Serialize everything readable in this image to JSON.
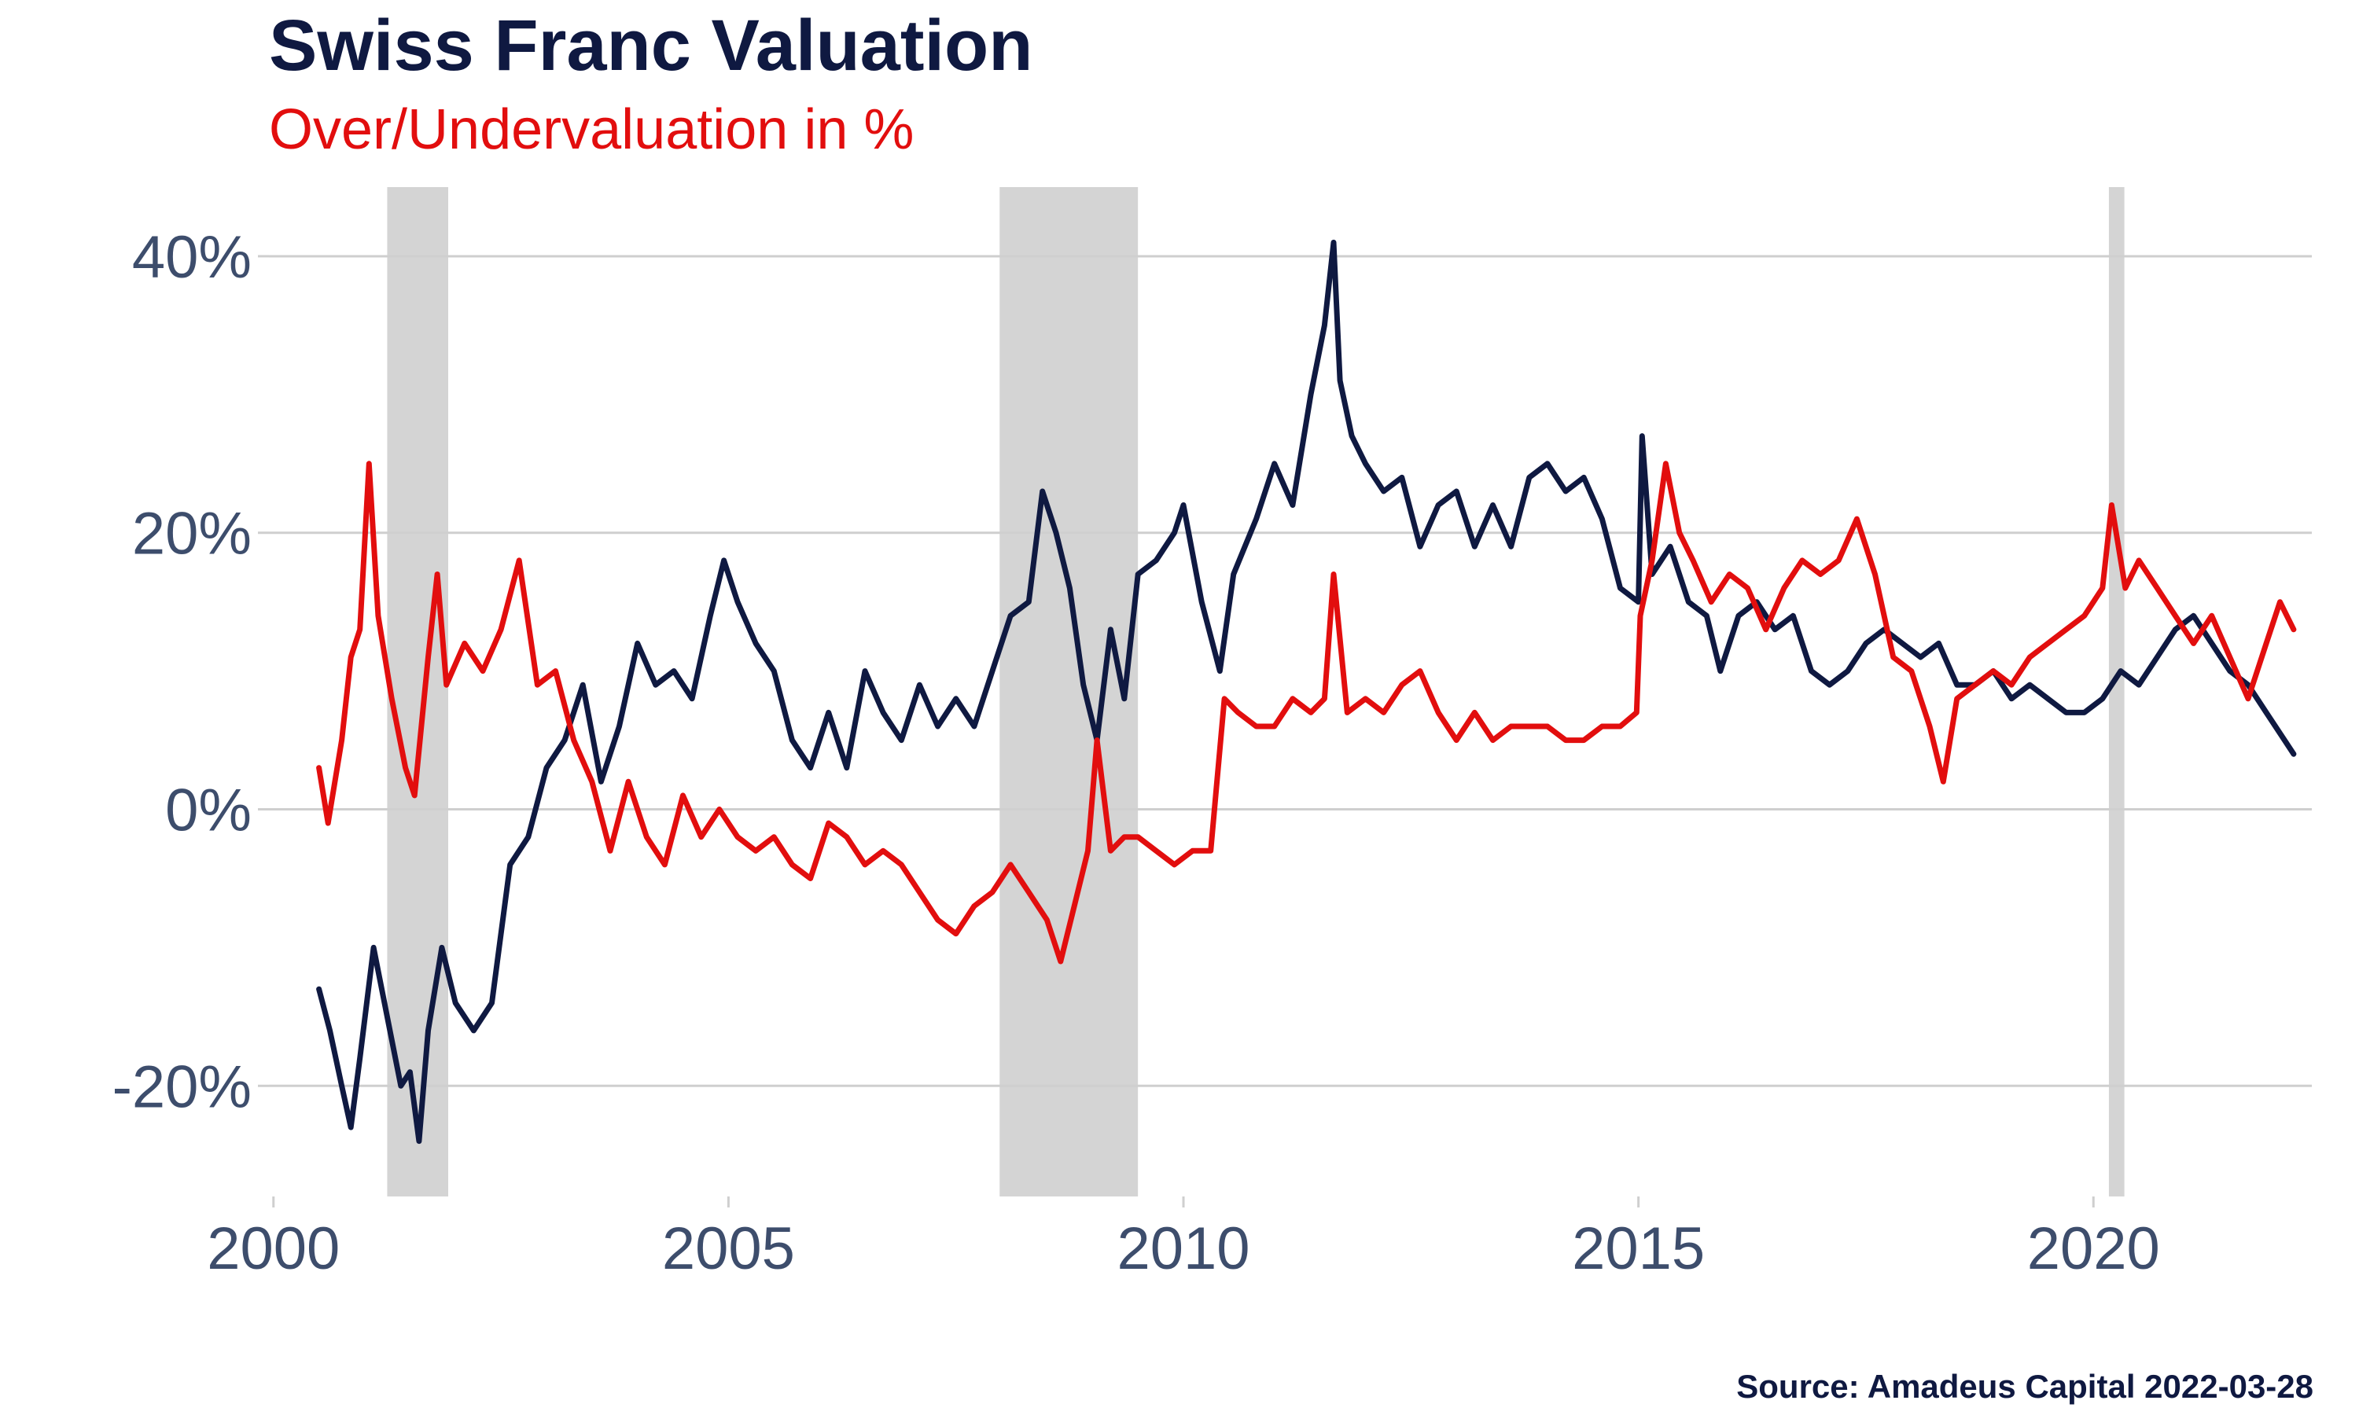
{
  "title": "Swiss Franc Valuation",
  "subtitle": "Over/Undervaluation in %",
  "source": "Source: Amadeus Capital 2022-03-28",
  "colors": {
    "series_dark": "#0f1941",
    "series_red": "#e20e0e",
    "recession_band": "#d4d4d4",
    "grid": "#cfcfcf",
    "tick_text": "#3d4d6c"
  },
  "chart_data": {
    "type": "line",
    "title": "Swiss Franc Valuation",
    "subtitle": "Over/Undervaluation in %",
    "xlim": [
      1999.95,
      2022.4
    ],
    "ylim": [
      -28,
      45
    ],
    "x_ticks": [
      2000,
      2005,
      2010,
      2015,
      2020
    ],
    "x_tick_labels": [
      "2000",
      "2005",
      "2010",
      "2015",
      "2020"
    ],
    "y_ticks": [
      -20,
      0,
      20,
      40
    ],
    "y_tick_labels": [
      "-20%",
      "0%",
      "20%",
      "40%"
    ],
    "grid": "horizontal",
    "shaded_periods": [
      [
        2001.25,
        2001.92
      ],
      [
        2007.98,
        2009.5
      ],
      [
        2020.17,
        2020.34
      ]
    ],
    "series": [
      {
        "color": "#0f1941",
        "points": [
          [
            2000.5,
            -13
          ],
          [
            2000.62,
            -16
          ],
          [
            2000.75,
            -20
          ],
          [
            2000.85,
            -23
          ],
          [
            2000.95,
            -18
          ],
          [
            2001.1,
            -10
          ],
          [
            2001.25,
            -15
          ],
          [
            2001.4,
            -20
          ],
          [
            2001.5,
            -19
          ],
          [
            2001.6,
            -24
          ],
          [
            2001.7,
            -16
          ],
          [
            2001.85,
            -10
          ],
          [
            2002.0,
            -14
          ],
          [
            2002.2,
            -16
          ],
          [
            2002.4,
            -14
          ],
          [
            2002.6,
            -4
          ],
          [
            2002.8,
            -2
          ],
          [
            2003.0,
            3
          ],
          [
            2003.2,
            5
          ],
          [
            2003.4,
            9
          ],
          [
            2003.6,
            2
          ],
          [
            2003.8,
            6
          ],
          [
            2004.0,
            12
          ],
          [
            2004.2,
            9
          ],
          [
            2004.4,
            10
          ],
          [
            2004.6,
            8
          ],
          [
            2004.8,
            14
          ],
          [
            2004.95,
            18
          ],
          [
            2005.1,
            15
          ],
          [
            2005.3,
            12
          ],
          [
            2005.5,
            10
          ],
          [
            2005.7,
            5
          ],
          [
            2005.9,
            3
          ],
          [
            2006.1,
            7
          ],
          [
            2006.3,
            3
          ],
          [
            2006.5,
            10
          ],
          [
            2006.7,
            7
          ],
          [
            2006.9,
            5
          ],
          [
            2007.1,
            9
          ],
          [
            2007.3,
            6
          ],
          [
            2007.5,
            8
          ],
          [
            2007.7,
            6
          ],
          [
            2007.9,
            10
          ],
          [
            2008.1,
            14
          ],
          [
            2008.3,
            15
          ],
          [
            2008.45,
            23
          ],
          [
            2008.6,
            20
          ],
          [
            2008.75,
            16
          ],
          [
            2008.9,
            9
          ],
          [
            2009.05,
            5
          ],
          [
            2009.2,
            13
          ],
          [
            2009.35,
            8
          ],
          [
            2009.5,
            17
          ],
          [
            2009.7,
            18
          ],
          [
            2009.9,
            20
          ],
          [
            2010.0,
            22
          ],
          [
            2010.2,
            15
          ],
          [
            2010.4,
            10
          ],
          [
            2010.55,
            17
          ],
          [
            2010.8,
            21
          ],
          [
            2011.0,
            25
          ],
          [
            2011.2,
            22
          ],
          [
            2011.4,
            30
          ],
          [
            2011.55,
            35
          ],
          [
            2011.65,
            41
          ],
          [
            2011.72,
            31
          ],
          [
            2011.85,
            27
          ],
          [
            2012.0,
            25
          ],
          [
            2012.2,
            23
          ],
          [
            2012.4,
            24
          ],
          [
            2012.6,
            19
          ],
          [
            2012.8,
            22
          ],
          [
            2013.0,
            23
          ],
          [
            2013.2,
            19
          ],
          [
            2013.4,
            22
          ],
          [
            2013.6,
            19
          ],
          [
            2013.8,
            24
          ],
          [
            2014.0,
            25
          ],
          [
            2014.2,
            23
          ],
          [
            2014.4,
            24
          ],
          [
            2014.6,
            21
          ],
          [
            2014.8,
            16
          ],
          [
            2015.0,
            15
          ],
          [
            2015.04,
            27
          ],
          [
            2015.15,
            17
          ],
          [
            2015.35,
            19
          ],
          [
            2015.55,
            15
          ],
          [
            2015.75,
            14
          ],
          [
            2015.9,
            10
          ],
          [
            2016.1,
            14
          ],
          [
            2016.3,
            15
          ],
          [
            2016.5,
            13
          ],
          [
            2016.7,
            14
          ],
          [
            2016.9,
            10
          ],
          [
            2017.1,
            9
          ],
          [
            2017.3,
            10
          ],
          [
            2017.5,
            12
          ],
          [
            2017.7,
            13
          ],
          [
            2017.9,
            12
          ],
          [
            2018.1,
            11
          ],
          [
            2018.3,
            12
          ],
          [
            2018.5,
            9
          ],
          [
            2018.7,
            9
          ],
          [
            2018.9,
            10
          ],
          [
            2019.1,
            8
          ],
          [
            2019.3,
            9
          ],
          [
            2019.5,
            8
          ],
          [
            2019.7,
            7
          ],
          [
            2019.9,
            7
          ],
          [
            2020.1,
            8
          ],
          [
            2020.3,
            10
          ],
          [
            2020.5,
            9
          ],
          [
            2020.7,
            11
          ],
          [
            2020.9,
            13
          ],
          [
            2021.1,
            14
          ],
          [
            2021.3,
            12
          ],
          [
            2021.5,
            10
          ],
          [
            2021.7,
            9
          ],
          [
            2021.9,
            7
          ],
          [
            2022.1,
            5
          ],
          [
            2022.2,
            4
          ]
        ]
      },
      {
        "color": "#e20e0e",
        "points": [
          [
            2000.5,
            3
          ],
          [
            2000.6,
            -1
          ],
          [
            2000.75,
            5
          ],
          [
            2000.85,
            11
          ],
          [
            2000.95,
            13
          ],
          [
            2001.05,
            25
          ],
          [
            2001.15,
            14
          ],
          [
            2001.3,
            8
          ],
          [
            2001.45,
            3
          ],
          [
            2001.55,
            1
          ],
          [
            2001.7,
            11
          ],
          [
            2001.8,
            17
          ],
          [
            2001.9,
            9
          ],
          [
            2002.1,
            12
          ],
          [
            2002.3,
            10
          ],
          [
            2002.5,
            13
          ],
          [
            2002.7,
            18
          ],
          [
            2002.9,
            9
          ],
          [
            2003.1,
            10
          ],
          [
            2003.3,
            5
          ],
          [
            2003.5,
            2
          ],
          [
            2003.7,
            -3
          ],
          [
            2003.9,
            2
          ],
          [
            2004.1,
            -2
          ],
          [
            2004.3,
            -4
          ],
          [
            2004.5,
            1
          ],
          [
            2004.7,
            -2
          ],
          [
            2004.9,
            0
          ],
          [
            2005.1,
            -2
          ],
          [
            2005.3,
            -3
          ],
          [
            2005.5,
            -2
          ],
          [
            2005.7,
            -4
          ],
          [
            2005.9,
            -5
          ],
          [
            2006.1,
            -1
          ],
          [
            2006.3,
            -2
          ],
          [
            2006.5,
            -4
          ],
          [
            2006.7,
            -3
          ],
          [
            2006.9,
            -4
          ],
          [
            2007.1,
            -6
          ],
          [
            2007.3,
            -8
          ],
          [
            2007.5,
            -9
          ],
          [
            2007.7,
            -7
          ],
          [
            2007.9,
            -6
          ],
          [
            2008.1,
            -4
          ],
          [
            2008.3,
            -6
          ],
          [
            2008.5,
            -8
          ],
          [
            2008.65,
            -11
          ],
          [
            2008.8,
            -7
          ],
          [
            2008.95,
            -3
          ],
          [
            2009.05,
            5
          ],
          [
            2009.2,
            -3
          ],
          [
            2009.35,
            -2
          ],
          [
            2009.5,
            -2
          ],
          [
            2009.7,
            -3
          ],
          [
            2009.9,
            -4
          ],
          [
            2010.1,
            -3
          ],
          [
            2010.3,
            -3
          ],
          [
            2010.45,
            8
          ],
          [
            2010.6,
            7
          ],
          [
            2010.8,
            6
          ],
          [
            2011.0,
            6
          ],
          [
            2011.2,
            8
          ],
          [
            2011.4,
            7
          ],
          [
            2011.55,
            8
          ],
          [
            2011.65,
            17
          ],
          [
            2011.8,
            7
          ],
          [
            2012.0,
            8
          ],
          [
            2012.2,
            7
          ],
          [
            2012.4,
            9
          ],
          [
            2012.6,
            10
          ],
          [
            2012.8,
            7
          ],
          [
            2013.0,
            5
          ],
          [
            2013.2,
            7
          ],
          [
            2013.4,
            5
          ],
          [
            2013.6,
            6
          ],
          [
            2013.8,
            6
          ],
          [
            2014.0,
            6
          ],
          [
            2014.2,
            5
          ],
          [
            2014.4,
            5
          ],
          [
            2014.6,
            6
          ],
          [
            2014.8,
            6
          ],
          [
            2014.98,
            7
          ],
          [
            2015.02,
            14
          ],
          [
            2015.15,
            18
          ],
          [
            2015.3,
            25
          ],
          [
            2015.45,
            20
          ],
          [
            2015.6,
            18
          ],
          [
            2015.8,
            15
          ],
          [
            2016.0,
            17
          ],
          [
            2016.2,
            16
          ],
          [
            2016.4,
            13
          ],
          [
            2016.6,
            16
          ],
          [
            2016.8,
            18
          ],
          [
            2017.0,
            17
          ],
          [
            2017.2,
            18
          ],
          [
            2017.4,
            21
          ],
          [
            2017.6,
            17
          ],
          [
            2017.8,
            11
          ],
          [
            2018.0,
            10
          ],
          [
            2018.2,
            6
          ],
          [
            2018.35,
            2
          ],
          [
            2018.5,
            8
          ],
          [
            2018.7,
            9
          ],
          [
            2018.9,
            10
          ],
          [
            2019.1,
            9
          ],
          [
            2019.3,
            11
          ],
          [
            2019.5,
            12
          ],
          [
            2019.7,
            13
          ],
          [
            2019.9,
            14
          ],
          [
            2020.1,
            16
          ],
          [
            2020.2,
            22
          ],
          [
            2020.35,
            16
          ],
          [
            2020.5,
            18
          ],
          [
            2020.7,
            16
          ],
          [
            2020.9,
            14
          ],
          [
            2021.1,
            12
          ],
          [
            2021.3,
            14
          ],
          [
            2021.5,
            11
          ],
          [
            2021.7,
            8
          ],
          [
            2021.9,
            12
          ],
          [
            2022.05,
            15
          ],
          [
            2022.2,
            13
          ]
        ]
      }
    ]
  }
}
